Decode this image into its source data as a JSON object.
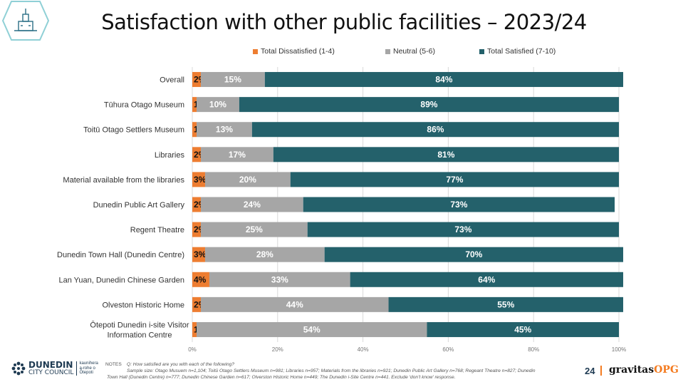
{
  "title": "Satisfaction with other public facilities – 2023/24",
  "colors": {
    "dissatisfied": "#ed7d31",
    "neutral": "#a6a6a6",
    "satisfied": "#24616b",
    "grid": "#d9d9d9"
  },
  "chart_data": {
    "type": "bar",
    "orientation": "horizontal",
    "stacked": true,
    "categories": [
      "Overall",
      "Tūhura Otago Museum",
      "Toitū Otago Settlers Museum",
      "Libraries",
      "Material available from the libraries",
      "Dunedin Public Art Gallery",
      "Regent Theatre",
      "Dunedin Town Hall (Dunedin Centre)",
      "Lan Yuan, Dunedin Chinese Garden",
      "Olveston Historic Home",
      "Ōtepoti Dunedin i-site Visitor Information Centre"
    ],
    "series": [
      {
        "name": "Total Dissatisfied (1-4)",
        "values": [
          2,
          1,
          1,
          2,
          3,
          2,
          2,
          3,
          4,
          2,
          1
        ]
      },
      {
        "name": "Neutral (5-6)",
        "values": [
          15,
          10,
          13,
          17,
          20,
          24,
          25,
          28,
          33,
          44,
          54
        ]
      },
      {
        "name": "Total Satisfied (7-10)",
        "values": [
          84,
          89,
          86,
          81,
          77,
          73,
          73,
          70,
          64,
          55,
          45
        ]
      }
    ],
    "xlim": [
      0,
      100
    ],
    "x_ticks": [
      "0%",
      "20%",
      "40%",
      "60%",
      "80%",
      "100%"
    ],
    "legend_position": "top",
    "grid": true
  },
  "footer": {
    "logo_line1": "DUNEDIN",
    "logo_line2": "CITY COUNCIL",
    "logo_maori_1": "kaunihera",
    "logo_maori_2": "a-rohe o",
    "logo_maori_3": "Ōtepoti",
    "notes_label": "NOTES",
    "notes_question": "Q: How satisfied are you with each of the following?",
    "notes_sample_1": "Sample size: Otago Musuem n=1,104; Toitū Otago Settlers Museum n=981; Libraries n=957; Materials from the libraries n=921; Dunedin Public Art Gallery n=768; Regeant Theatre n=827; Dunedin",
    "notes_sample_2": "Town Hall (Dunedin Centre) n=777; Dunedin Chinese Garden n=617; Olverston Historic Home n=449; The Dunedin i-Site Centre n=441. Exclude ‘don’t know’ response.",
    "page_number": "24",
    "brand_main": "gravitas",
    "brand_suffix": "OPG"
  }
}
